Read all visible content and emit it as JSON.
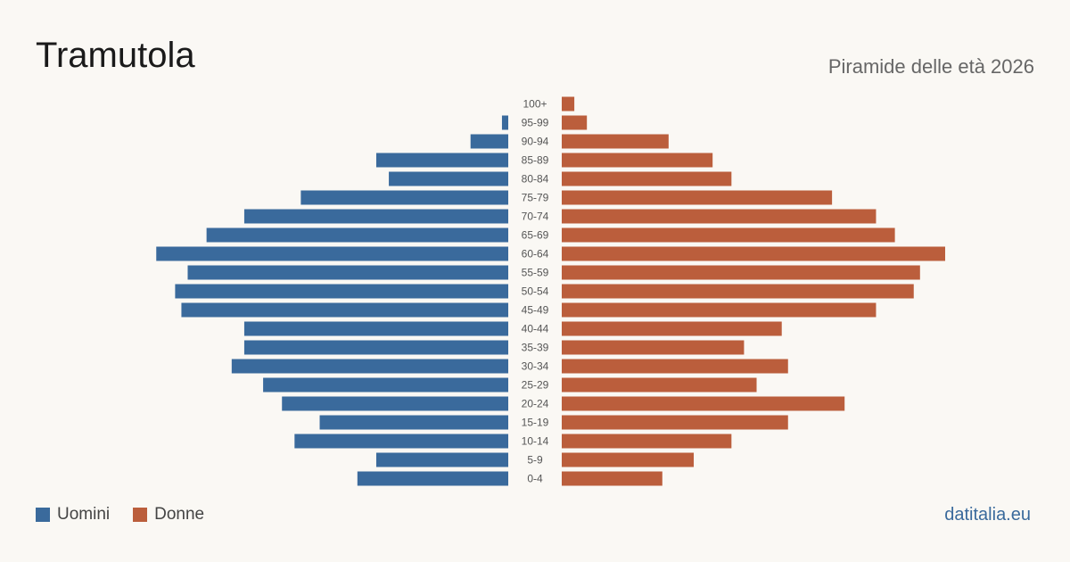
{
  "header": {
    "title": "Tramutola",
    "subtitle": "Piramide delle età 2026"
  },
  "legend": {
    "men_label": "Uomini",
    "women_label": "Donne"
  },
  "source": "datitalia.eu",
  "colors": {
    "men": "#3a6a9c",
    "women": "#bb5e3c",
    "background": "#faf8f4"
  },
  "chart_data": {
    "type": "bar",
    "orientation": "horizontal-pyramid",
    "categories": [
      "100+",
      "95-99",
      "90-94",
      "85-89",
      "80-84",
      "75-79",
      "70-74",
      "65-69",
      "60-64",
      "55-59",
      "50-54",
      "45-49",
      "40-44",
      "35-39",
      "30-34",
      "25-29",
      "20-24",
      "15-19",
      "10-14",
      "5-9",
      "0-4"
    ],
    "series": [
      {
        "name": "Uomini",
        "values": [
          0,
          1,
          6,
          21,
          19,
          33,
          42,
          48,
          56,
          51,
          53,
          52,
          42,
          42,
          44,
          39,
          36,
          30,
          34,
          21,
          24
        ]
      },
      {
        "name": "Donne",
        "values": [
          2,
          4,
          17,
          24,
          27,
          43,
          50,
          53,
          61,
          57,
          56,
          50,
          35,
          29,
          36,
          31,
          45,
          36,
          27,
          21,
          16
        ]
      }
    ],
    "legend_position": "bottom-left"
  }
}
